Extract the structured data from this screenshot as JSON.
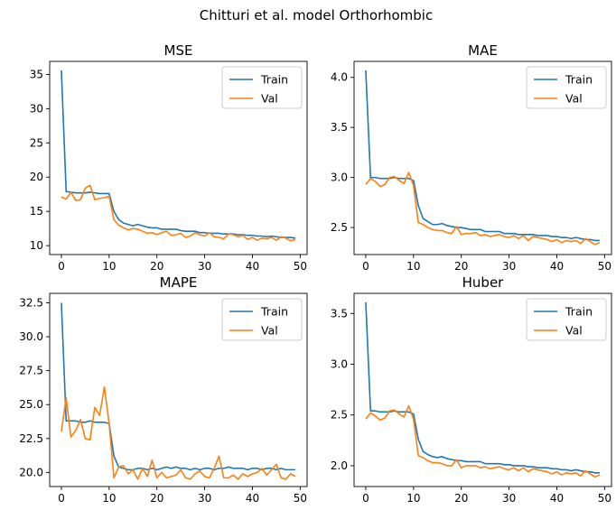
{
  "figure_title": "Chitturi et al. model Orthorhombic",
  "colors": {
    "train": "#1f77b4",
    "val": "#ff7f0e"
  },
  "chart_data": [
    {
      "type": "line",
      "title": "MSE",
      "xlabel": "",
      "ylabel": "",
      "xlim": [
        -2.45,
        51.45
      ],
      "ylim": [
        8.7,
        36.9
      ],
      "xticks": [
        0,
        10,
        20,
        30,
        40,
        50
      ],
      "xtick_labels": [
        "0",
        "10",
        "20",
        "30",
        "40",
        "50"
      ],
      "yticks": [
        10,
        15,
        20,
        25,
        30,
        35
      ],
      "ytick_labels": [
        "10",
        "15",
        "20",
        "25",
        "30",
        "35"
      ],
      "legend": "upper right",
      "x": [
        0,
        1,
        2,
        3,
        4,
        5,
        6,
        7,
        8,
        9,
        10,
        11,
        12,
        13,
        14,
        15,
        16,
        17,
        18,
        19,
        20,
        21,
        22,
        23,
        24,
        25,
        26,
        27,
        28,
        29,
        30,
        31,
        32,
        33,
        34,
        35,
        36,
        37,
        38,
        39,
        40,
        41,
        42,
        43,
        44,
        45,
        46,
        47,
        48,
        49
      ],
      "series": [
        {
          "name": "Train",
          "color": "#1f77b4",
          "values": [
            35.6,
            17.9,
            17.8,
            17.7,
            17.7,
            17.7,
            17.8,
            17.7,
            17.6,
            17.6,
            17.6,
            15.0,
            13.8,
            13.3,
            13.1,
            12.9,
            13.1,
            12.9,
            12.7,
            12.6,
            12.6,
            12.4,
            12.4,
            12.4,
            12.4,
            12.2,
            12.1,
            12.1,
            12.1,
            11.9,
            11.9,
            11.8,
            11.8,
            11.8,
            11.7,
            11.7,
            11.7,
            11.6,
            11.6,
            11.5,
            11.5,
            11.4,
            11.4,
            11.3,
            11.4,
            11.3,
            11.2,
            11.2,
            11.2,
            11.1
          ]
        },
        {
          "name": "Val",
          "color": "#ff7f0e",
          "values": [
            17.1,
            16.8,
            17.8,
            16.6,
            16.7,
            18.4,
            18.8,
            16.7,
            16.9,
            17.0,
            17.2,
            13.8,
            13.0,
            12.6,
            12.3,
            12.5,
            12.4,
            12.1,
            11.8,
            11.9,
            11.6,
            11.9,
            12.1,
            11.5,
            11.6,
            11.8,
            11.2,
            11.4,
            11.9,
            11.6,
            11.4,
            11.9,
            11.3,
            11.2,
            11.0,
            11.7,
            11.6,
            11.3,
            11.5,
            10.9,
            11.2,
            10.8,
            11.1,
            11.0,
            11.2,
            10.8,
            11.3,
            11.1,
            10.7,
            10.9
          ]
        }
      ]
    },
    {
      "type": "line",
      "title": "MAE",
      "xlabel": "",
      "ylabel": "",
      "xlim": [
        -2.45,
        51.45
      ],
      "ylim": [
        2.23,
        4.16
      ],
      "xticks": [
        0,
        10,
        20,
        30,
        40,
        50
      ],
      "xtick_labels": [
        "0",
        "10",
        "20",
        "30",
        "40",
        "50"
      ],
      "yticks": [
        2.5,
        3.0,
        3.5,
        4.0
      ],
      "ytick_labels": [
        "2.5",
        "3.0",
        "3.5",
        "4.0"
      ],
      "legend": "upper right",
      "x": [
        0,
        1,
        2,
        3,
        4,
        5,
        6,
        7,
        8,
        9,
        10,
        11,
        12,
        13,
        14,
        15,
        16,
        17,
        18,
        19,
        20,
        21,
        22,
        23,
        24,
        25,
        26,
        27,
        28,
        29,
        30,
        31,
        32,
        33,
        34,
        35,
        36,
        37,
        38,
        39,
        40,
        41,
        42,
        43,
        44,
        45,
        46,
        47,
        48,
        49
      ],
      "series": [
        {
          "name": "Train",
          "color": "#1f77b4",
          "values": [
            4.07,
            3.0,
            3.0,
            2.99,
            2.99,
            2.99,
            3.0,
            2.99,
            2.99,
            2.99,
            2.97,
            2.72,
            2.59,
            2.56,
            2.53,
            2.53,
            2.54,
            2.52,
            2.51,
            2.5,
            2.5,
            2.49,
            2.48,
            2.48,
            2.48,
            2.46,
            2.46,
            2.46,
            2.46,
            2.44,
            2.44,
            2.44,
            2.43,
            2.43,
            2.43,
            2.43,
            2.42,
            2.42,
            2.42,
            2.41,
            2.41,
            2.4,
            2.4,
            2.39,
            2.4,
            2.39,
            2.38,
            2.38,
            2.37,
            2.37
          ]
        },
        {
          "name": "Val",
          "color": "#ff7f0e",
          "values": [
            2.93,
            2.99,
            2.96,
            2.91,
            2.93,
            3.0,
            3.01,
            2.97,
            2.94,
            3.05,
            2.92,
            2.55,
            2.53,
            2.5,
            2.48,
            2.47,
            2.47,
            2.45,
            2.44,
            2.51,
            2.43,
            2.44,
            2.44,
            2.45,
            2.42,
            2.43,
            2.41,
            2.42,
            2.43,
            2.41,
            2.4,
            2.42,
            2.39,
            2.42,
            2.37,
            2.41,
            2.4,
            2.39,
            2.38,
            2.36,
            2.38,
            2.35,
            2.37,
            2.36,
            2.37,
            2.34,
            2.39,
            2.36,
            2.33,
            2.35
          ]
        }
      ]
    },
    {
      "type": "line",
      "title": "MAPE",
      "xlabel": "",
      "ylabel": "",
      "xlim": [
        -2.45,
        51.45
      ],
      "ylim": [
        18.96,
        33.2
      ],
      "xticks": [
        0,
        10,
        20,
        30,
        40,
        50
      ],
      "xtick_labels": [
        "0",
        "10",
        "20",
        "30",
        "40",
        "50"
      ],
      "yticks": [
        20.0,
        22.5,
        25.0,
        27.5,
        30.0,
        32.5
      ],
      "ytick_labels": [
        "20.0",
        "22.5",
        "25.0",
        "27.5",
        "30.0",
        "32.5"
      ],
      "legend": "upper right",
      "x": [
        0,
        1,
        2,
        3,
        4,
        5,
        6,
        7,
        8,
        9,
        10,
        11,
        12,
        13,
        14,
        15,
        16,
        17,
        18,
        19,
        20,
        21,
        22,
        23,
        24,
        25,
        26,
        27,
        28,
        29,
        30,
        31,
        32,
        33,
        34,
        35,
        36,
        37,
        38,
        39,
        40,
        41,
        42,
        43,
        44,
        45,
        46,
        47,
        48,
        49
      ],
      "series": [
        {
          "name": "Train",
          "color": "#1f77b4",
          "values": [
            32.5,
            23.8,
            23.8,
            23.8,
            23.7,
            23.7,
            23.8,
            23.7,
            23.7,
            23.7,
            23.6,
            21.2,
            20.4,
            20.3,
            20.2,
            20.2,
            20.3,
            20.3,
            20.2,
            20.3,
            20.2,
            20.3,
            20.4,
            20.3,
            20.4,
            20.3,
            20.3,
            20.2,
            20.3,
            20.2,
            20.3,
            20.3,
            20.2,
            20.3,
            20.3,
            20.4,
            20.3,
            20.3,
            20.3,
            20.2,
            20.3,
            20.3,
            20.2,
            20.3,
            20.3,
            20.2,
            20.3,
            20.2,
            20.2,
            20.2
          ]
        },
        {
          "name": "Val",
          "color": "#ff7f0e",
          "values": [
            23.0,
            25.5,
            22.6,
            23.1,
            23.9,
            22.5,
            22.4,
            24.8,
            24.2,
            26.3,
            23.6,
            19.6,
            20.4,
            20.5,
            19.9,
            20.2,
            19.5,
            20.3,
            19.7,
            20.9,
            19.6,
            20.0,
            19.6,
            19.7,
            19.8,
            20.2,
            19.6,
            19.5,
            19.9,
            20.1,
            19.7,
            19.6,
            20.3,
            21.2,
            19.6,
            19.6,
            19.8,
            19.5,
            19.9,
            19.7,
            19.9,
            20.0,
            20.3,
            19.8,
            20.2,
            20.6,
            19.6,
            19.5,
            19.9,
            19.7
          ]
        }
      ]
    },
    {
      "type": "line",
      "title": "Huber",
      "xlabel": "",
      "ylabel": "",
      "xlim": [
        -2.45,
        51.45
      ],
      "ylim": [
        1.795,
        3.698
      ],
      "xticks": [
        0,
        10,
        20,
        30,
        40,
        50
      ],
      "xtick_labels": [
        "0",
        "10",
        "20",
        "30",
        "40",
        "50"
      ],
      "yticks": [
        2.0,
        2.5,
        3.0,
        3.5
      ],
      "ytick_labels": [
        "2.0",
        "2.5",
        "3.0",
        "3.5"
      ],
      "legend": "upper right",
      "x": [
        0,
        1,
        2,
        3,
        4,
        5,
        6,
        7,
        8,
        9,
        10,
        11,
        12,
        13,
        14,
        15,
        16,
        17,
        18,
        19,
        20,
        21,
        22,
        23,
        24,
        25,
        26,
        27,
        28,
        29,
        30,
        31,
        32,
        33,
        34,
        35,
        36,
        37,
        38,
        39,
        40,
        41,
        42,
        43,
        44,
        45,
        46,
        47,
        48,
        49
      ],
      "series": [
        {
          "name": "Train",
          "color": "#1f77b4",
          "values": [
            3.61,
            2.54,
            2.54,
            2.53,
            2.53,
            2.53,
            2.54,
            2.53,
            2.53,
            2.53,
            2.51,
            2.26,
            2.14,
            2.11,
            2.09,
            2.08,
            2.09,
            2.07,
            2.06,
            2.05,
            2.05,
            2.04,
            2.04,
            2.04,
            2.04,
            2.02,
            2.02,
            2.02,
            2.02,
            2.01,
            2.01,
            2.0,
            2.0,
            2.0,
            1.99,
            1.99,
            1.98,
            1.98,
            1.98,
            1.97,
            1.97,
            1.96,
            1.96,
            1.95,
            1.96,
            1.95,
            1.94,
            1.94,
            1.93,
            1.93
          ]
        },
        {
          "name": "Val",
          "color": "#ff7f0e",
          "values": [
            2.46,
            2.52,
            2.49,
            2.45,
            2.47,
            2.54,
            2.55,
            2.51,
            2.48,
            2.59,
            2.46,
            2.1,
            2.08,
            2.05,
            2.03,
            2.03,
            2.02,
            2.0,
            2.0,
            2.06,
            1.98,
            2.0,
            2.0,
            2.0,
            1.98,
            1.99,
            1.97,
            1.98,
            1.99,
            1.97,
            1.96,
            1.98,
            1.95,
            1.98,
            1.94,
            1.97,
            1.96,
            1.95,
            1.94,
            1.92,
            1.94,
            1.91,
            1.93,
            1.92,
            1.93,
            1.9,
            1.95,
            1.92,
            1.89,
            1.91
          ]
        }
      ]
    }
  ]
}
